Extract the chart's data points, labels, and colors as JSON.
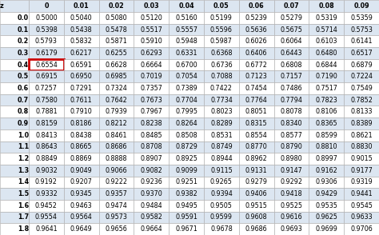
{
  "col_headers": [
    "0",
    "0.01",
    "0.02",
    "0.03",
    "0.04",
    "0.05",
    "0.06",
    "0.07",
    "0.08",
    "0.09"
  ],
  "row_headers": [
    "0.0",
    "0.1",
    "0.2",
    "0.3",
    "0.4",
    "0.5",
    "0.6",
    "0.7",
    "0.8",
    "0.9",
    "1.0",
    "1.1",
    "1.2",
    "1.3",
    "1.4",
    "1.5",
    "1.6",
    "1.7",
    "1.8"
  ],
  "values": [
    [
      0.5,
      0.504,
      0.508,
      0.512,
      0.516,
      0.5199,
      0.5239,
      0.5279,
      0.5319,
      0.5359
    ],
    [
      0.5398,
      0.5438,
      0.5478,
      0.5517,
      0.5557,
      0.5596,
      0.5636,
      0.5675,
      0.5714,
      0.5753
    ],
    [
      0.5793,
      0.5832,
      0.5871,
      0.591,
      0.5948,
      0.5987,
      0.6026,
      0.6064,
      0.6103,
      0.6141
    ],
    [
      0.6179,
      0.6217,
      0.6255,
      0.6293,
      0.6331,
      0.6368,
      0.6406,
      0.6443,
      0.648,
      0.6517
    ],
    [
      0.6554,
      0.6591,
      0.6628,
      0.6664,
      0.67,
      0.6736,
      0.6772,
      0.6808,
      0.6844,
      0.6879
    ],
    [
      0.6915,
      0.695,
      0.6985,
      0.7019,
      0.7054,
      0.7088,
      0.7123,
      0.7157,
      0.719,
      0.7224
    ],
    [
      0.7257,
      0.7291,
      0.7324,
      0.7357,
      0.7389,
      0.7422,
      0.7454,
      0.7486,
      0.7517,
      0.7549
    ],
    [
      0.758,
      0.7611,
      0.7642,
      0.7673,
      0.7704,
      0.7734,
      0.7764,
      0.7794,
      0.7823,
      0.7852
    ],
    [
      0.7881,
      0.791,
      0.7939,
      0.7967,
      0.7995,
      0.8023,
      0.8051,
      0.8078,
      0.8106,
      0.8133
    ],
    [
      0.8159,
      0.8186,
      0.8212,
      0.8238,
      0.8264,
      0.8289,
      0.8315,
      0.834,
      0.8365,
      0.8389
    ],
    [
      0.8413,
      0.8438,
      0.8461,
      0.8485,
      0.8508,
      0.8531,
      0.8554,
      0.8577,
      0.8599,
      0.8621
    ],
    [
      0.8643,
      0.8665,
      0.8686,
      0.8708,
      0.8729,
      0.8749,
      0.877,
      0.879,
      0.881,
      0.883
    ],
    [
      0.8849,
      0.8869,
      0.8888,
      0.8907,
      0.8925,
      0.8944,
      0.8962,
      0.898,
      0.8997,
      0.9015
    ],
    [
      0.9032,
      0.9049,
      0.9066,
      0.9082,
      0.9099,
      0.9115,
      0.9131,
      0.9147,
      0.9162,
      0.9177
    ],
    [
      0.9192,
      0.9207,
      0.9222,
      0.9236,
      0.9251,
      0.9265,
      0.9279,
      0.9292,
      0.9306,
      0.9319
    ],
    [
      0.9332,
      0.9345,
      0.9357,
      0.937,
      0.9382,
      0.9394,
      0.9406,
      0.9418,
      0.9429,
      0.9441
    ],
    [
      0.9452,
      0.9463,
      0.9474,
      0.9484,
      0.9495,
      0.9505,
      0.9515,
      0.9525,
      0.9535,
      0.9545
    ],
    [
      0.9554,
      0.9564,
      0.9573,
      0.9582,
      0.9591,
      0.9599,
      0.9608,
      0.9616,
      0.9625,
      0.9633
    ],
    [
      0.9641,
      0.9649,
      0.9656,
      0.9664,
      0.9671,
      0.9678,
      0.9686,
      0.9693,
      0.9699,
      0.9706
    ]
  ],
  "highlighted_cell": [
    4,
    0
  ],
  "highlight_color": "#cc0000",
  "header_bg": "#dce6f1",
  "even_row_bg": "#ffffff",
  "odd_row_bg": "#dce6f1",
  "grid_color": "#aaaaaa",
  "header_text_color": "#000000",
  "cell_text_color": "#000000",
  "z_label": "z",
  "fig_width": 4.74,
  "fig_height": 2.94,
  "dpi": 100,
  "font_size": 5.8,
  "row_label_font_size": 5.8
}
